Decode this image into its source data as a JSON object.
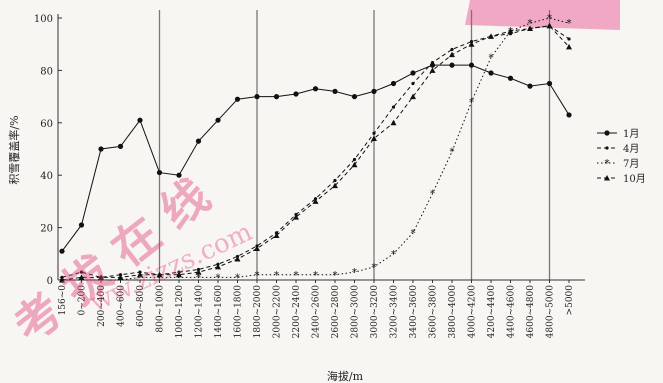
{
  "chart_data": {
    "type": "line",
    "title": "",
    "xlabel": "海拔/m",
    "ylabel": "积雪覆盖率/%",
    "ylim": [
      0,
      100
    ],
    "yticks": [
      0,
      20,
      40,
      60,
      80,
      100
    ],
    "grid": "vertical reference lines at 800~1000, 1800~2000, 3000~3200, 4000~4200, 4800~5000",
    "legend_position": "right",
    "categories": [
      "156~0",
      "0~200",
      "200~400",
      "400~600",
      "600~800",
      "800~1000",
      "1000~1200",
      "1200~1400",
      "1400~1600",
      "1600~1800",
      "1800~2000",
      "2000~2200",
      "2200~2400",
      "2400~2600",
      "2600~2800",
      "2800~3000",
      "3000~3200",
      "3200~3400",
      "3400~3600",
      "3600~3800",
      "3800~4000",
      "4000~4200",
      "4200~4400",
      "4400~4600",
      "4600~4800",
      "4800~5000",
      ">5000"
    ],
    "series": [
      {
        "name": "1月",
        "marker": "circle",
        "line": "solid",
        "values": [
          11,
          21,
          50,
          51,
          61,
          41,
          40,
          53,
          61,
          69,
          70,
          70,
          71,
          73,
          72,
          70,
          72,
          75,
          79,
          82,
          82,
          82,
          79,
          77,
          74,
          75,
          63
        ]
      },
      {
        "name": "4月",
        "marker": "dot",
        "line": "dashed",
        "values": [
          1,
          3,
          1,
          2,
          3,
          2,
          3,
          4,
          6,
          9,
          13,
          18,
          25,
          31,
          38,
          46,
          56,
          66,
          75,
          83,
          88,
          91,
          93,
          94,
          96,
          97,
          92
        ]
      },
      {
        "name": "7月",
        "marker": "star",
        "line": "dotted",
        "values": [
          0,
          0,
          0,
          0,
          1,
          1,
          1,
          1,
          1,
          1,
          2,
          2,
          2,
          2,
          2,
          3,
          5,
          10,
          18,
          33,
          49,
          68,
          85,
          95,
          98,
          100,
          98
        ]
      },
      {
        "name": "10月",
        "marker": "triangle",
        "line": "dashed",
        "values": [
          0,
          1,
          1,
          1,
          2,
          2,
          2,
          3,
          5,
          8,
          12,
          17,
          24,
          30,
          36,
          44,
          54,
          60,
          70,
          80,
          86,
          90,
          93,
          95,
          96,
          97,
          89
        ]
      }
    ],
    "vlines_at_categories": [
      "800~1000",
      "1800~2000",
      "3000~3200",
      "4000~4200",
      "4800~5000"
    ],
    "watermark": {
      "text": "考 拔 在 线",
      "url": "ww.zizzs.com"
    }
  }
}
